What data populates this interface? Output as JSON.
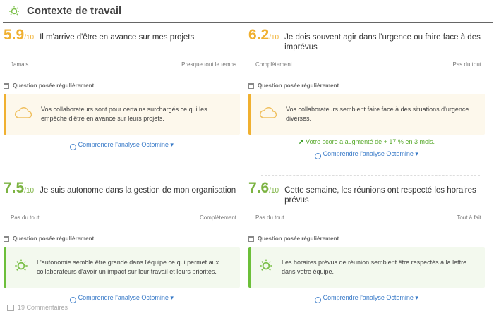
{
  "header": {
    "title": "Contexte de travail",
    "icon": "sun-icon"
  },
  "colors": {
    "warn": "#f0b030",
    "ok": "#6cbf3a",
    "link": "#3a7bc8"
  },
  "cards": [
    {
      "score": "5.9",
      "denominator": "/10",
      "question": "Il m'arrive d'être en avance sur mes projets",
      "scale_min": "Jamais",
      "scale_max": "Presque tout le temps",
      "frequency": "Question posée régulièrement",
      "message": "Vos collaborateurs sont pour certains surchargés ce qui les empêche d'être en avance sur leurs projets.",
      "icon": "cloud-icon",
      "link": "Comprendre l'analyse Octomine"
    },
    {
      "score": "6.2",
      "denominator": "/10",
      "question": "Je dois souvent agir dans l'urgence ou faire face à des imprévus",
      "scale_min": "Complètement",
      "scale_max": "Pas du tout",
      "frequency": "Question posée régulièrement",
      "message": "Vos collaborateurs semblent faire face à des situations d'urgence diverses.",
      "icon": "cloud-icon",
      "trend": "Votre score a augmenté de + 17 % en 3 mois.",
      "link": "Comprendre l'analyse Octomine"
    },
    {
      "score": "7.5",
      "denominator": "/10",
      "question": "Je suis autonome dans la gestion de mon organisation",
      "scale_min": "Pas du tout",
      "scale_max": "Complètement",
      "frequency": "Question posée régulièrement",
      "message": "L'autonomie semble être grande dans l'équipe ce qui permet aux collaborateurs d'avoir un impact sur leur travail et leurs priorités.",
      "icon": "sun-icon",
      "link": "Comprendre l'analyse Octomine"
    },
    {
      "score": "7.6",
      "denominator": "/10",
      "question": "Cette semaine, les réunions ont respecté les horaires prévus",
      "scale_min": "Pas du tout",
      "scale_max": "Tout à fait",
      "frequency": "Question posée régulièrement",
      "message": "Les horaires prévus de réunion semblent être respectés à la lettre dans votre équipe.",
      "icon": "sun-icon",
      "link": "Comprendre l'analyse Octomine"
    }
  ],
  "comments": "19 Commentaires"
}
